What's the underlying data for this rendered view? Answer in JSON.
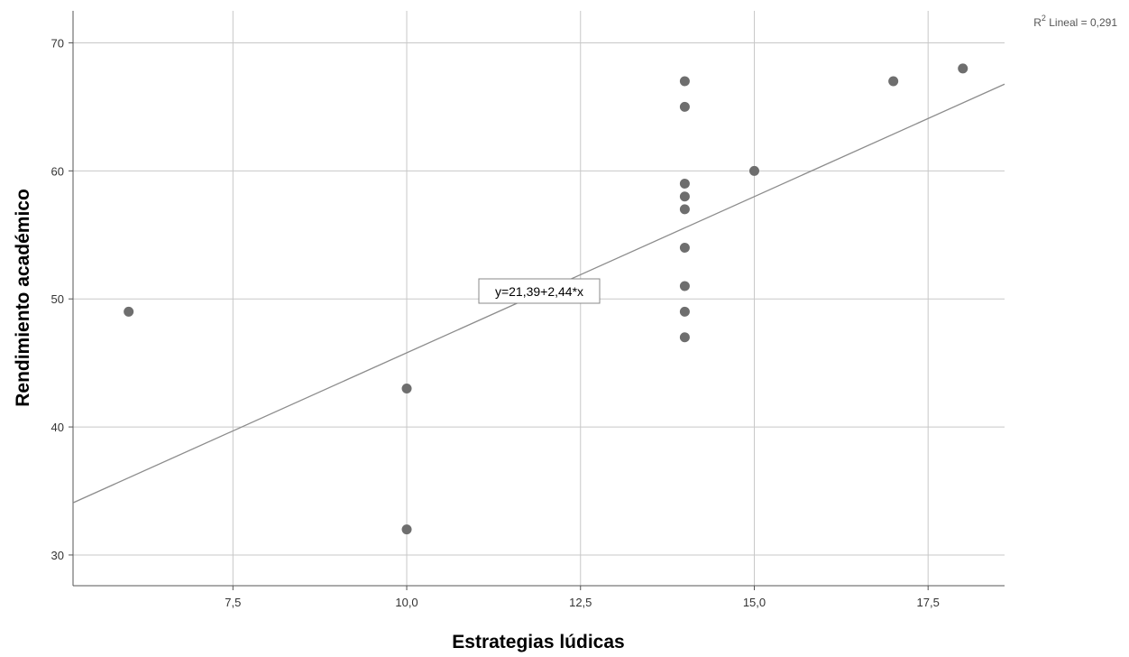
{
  "chart_data": {
    "type": "scatter",
    "xlabel": "Estrategias lúdicas",
    "ylabel": "Rendimiento académico",
    "xlim": [
      5.2,
      18.6
    ],
    "ylim": [
      27.6,
      72.5
    ],
    "x_ticks": [
      7.5,
      10.0,
      12.5,
      15.0,
      17.5
    ],
    "x_tick_labels": [
      "7,5",
      "10,0",
      "12,5",
      "15,0",
      "17,5"
    ],
    "y_ticks": [
      30,
      40,
      50,
      60,
      70
    ],
    "y_tick_labels": [
      "30",
      "40",
      "50",
      "60",
      "70"
    ],
    "grid": true,
    "point_color": "#6e6e6e",
    "line_color": "#8c8c8c",
    "points": [
      {
        "x": 6,
        "y": 49
      },
      {
        "x": 10,
        "y": 43
      },
      {
        "x": 10,
        "y": 32
      },
      {
        "x": 14,
        "y": 67
      },
      {
        "x": 14,
        "y": 65
      },
      {
        "x": 14,
        "y": 59
      },
      {
        "x": 14,
        "y": 58
      },
      {
        "x": 14,
        "y": 57
      },
      {
        "x": 14,
        "y": 54
      },
      {
        "x": 14,
        "y": 51
      },
      {
        "x": 14,
        "y": 49
      },
      {
        "x": 14,
        "y": 47
      },
      {
        "x": 15,
        "y": 60
      },
      {
        "x": 17,
        "y": 67
      },
      {
        "x": 18,
        "y": 68
      }
    ],
    "fit_line": {
      "intercept": 21.39,
      "slope": 2.44
    },
    "equation_label": "y=21,39+2,44*x",
    "r2_prefix": "R",
    "r2_superscript": "2",
    "r2_suffix": " Lineal = 0,291"
  }
}
